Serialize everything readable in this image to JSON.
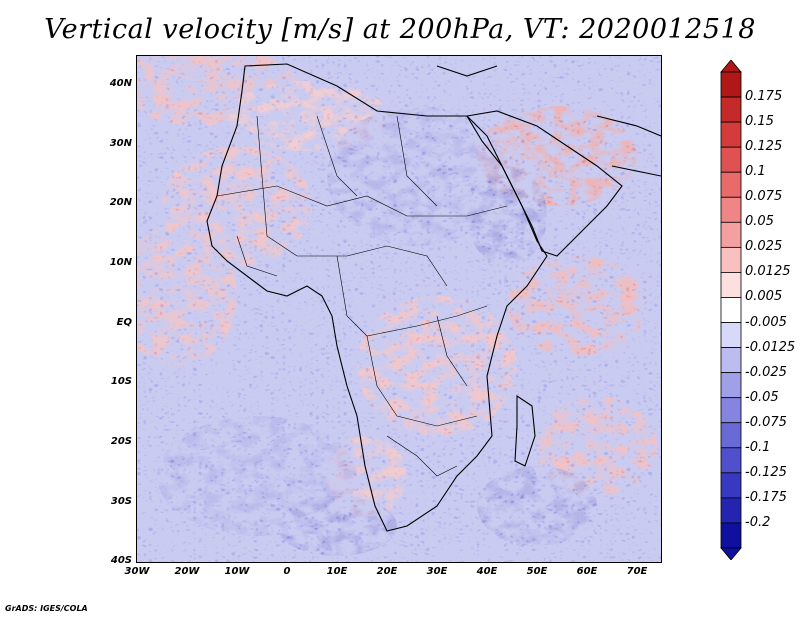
{
  "title": "Vertical velocity [m/s] at 200hPa, VT: 2020012518",
  "footer": "GrADS: IGES/COLA",
  "map": {
    "lat_labels": [
      "40N",
      "30N",
      "20N",
      "10N",
      "EQ",
      "10S",
      "20S",
      "30S",
      "40S"
    ],
    "lon_labels": [
      "30W",
      "20W",
      "10W",
      "0",
      "10E",
      "20E",
      "30E",
      "40E",
      "50E",
      "60E",
      "70E"
    ]
  },
  "colorbar": {
    "labels": [
      "0.175",
      "0.15",
      "0.125",
      "0.1",
      "0.075",
      "0.05",
      "0.025",
      "0.0125",
      "0.005",
      "-0.005",
      "-0.0125",
      "-0.025",
      "-0.05",
      "-0.075",
      "-0.1",
      "-0.125",
      "-0.175",
      "-0.2"
    ],
    "colors": [
      "#b01818",
      "#c42a2a",
      "#d43c3c",
      "#e05252",
      "#e86a6a",
      "#ef8585",
      "#f4a0a0",
      "#f8c0c0",
      "#fce0e0",
      "#ffffff",
      "#d8d8f8",
      "#bcbcf0",
      "#a0a0e8",
      "#8585e0",
      "#6a6ad6",
      "#5050cc",
      "#3838c0",
      "#2424b0",
      "#1010a0"
    ]
  }
}
